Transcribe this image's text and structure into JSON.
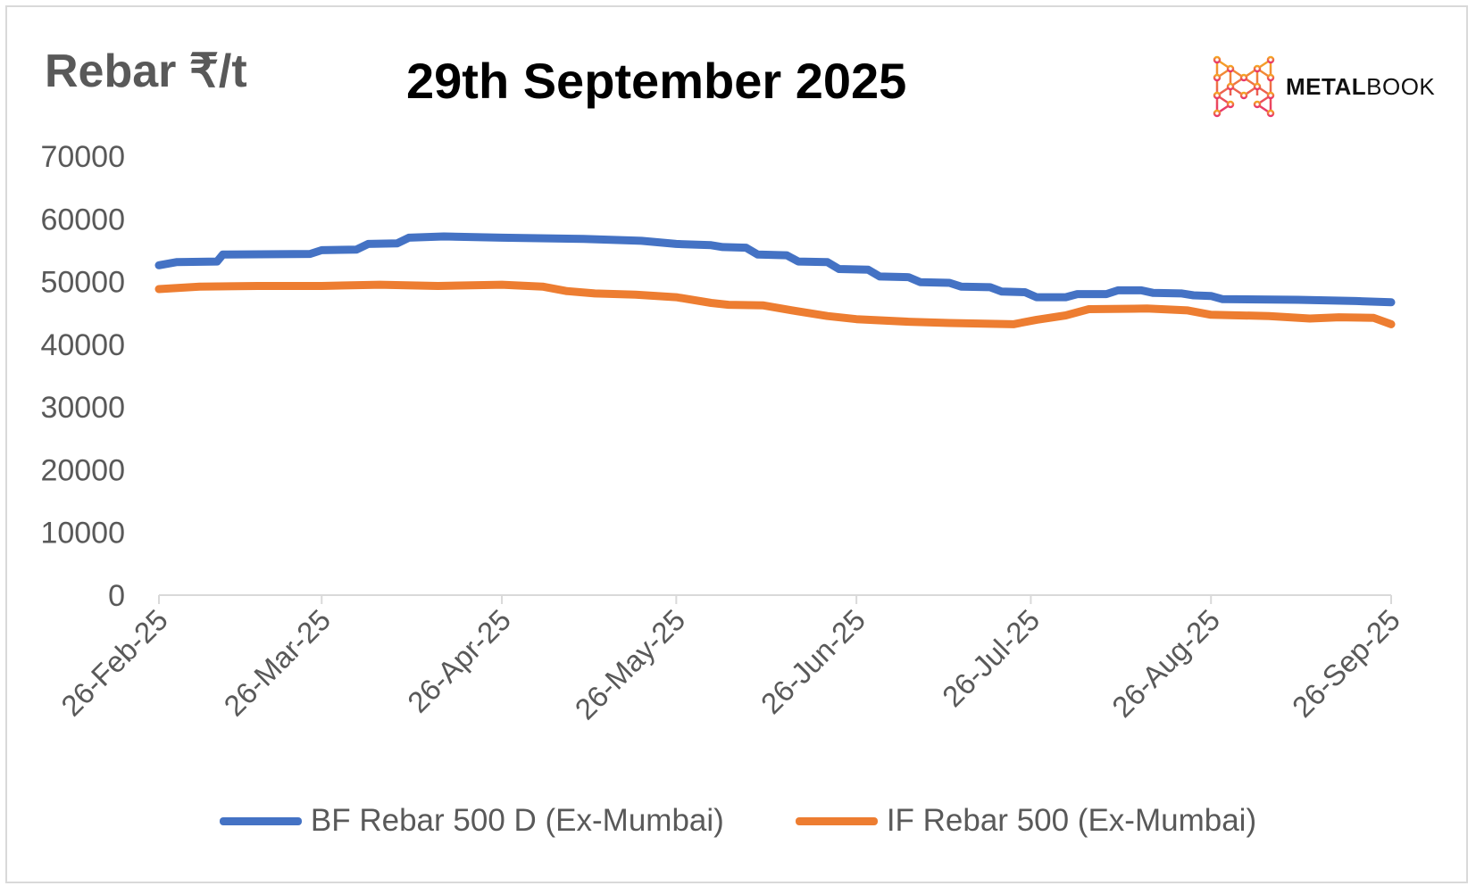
{
  "header": {
    "y_title": "Rebar ₹/t",
    "title": "29th September 2025",
    "logo_text_bold": "METAL",
    "logo_text_light": "BOOK"
  },
  "chart_data": {
    "type": "line",
    "title": "29th September 2025",
    "ylabel": "Rebar ₹/t",
    "xlabel": "",
    "ylim": [
      0,
      70000
    ],
    "yticks": [
      0,
      10000,
      20000,
      30000,
      40000,
      50000,
      60000,
      70000
    ],
    "xticks": [
      "2025-02-26",
      "2025-03-26",
      "2025-04-26",
      "2025-05-26",
      "2025-06-26",
      "2025-07-26",
      "2025-08-26",
      "2025-09-26"
    ],
    "xtick_labels": [
      "26-Feb-25",
      "26-Mar-25",
      "26-Apr-25",
      "26-May-25",
      "26-Jun-25",
      "26-Jul-25",
      "26-Aug-25",
      "26-Sep-25"
    ],
    "xlim": [
      "2025-02-26",
      "2025-09-26"
    ],
    "grid": false,
    "legend": "bottom",
    "series": [
      {
        "name": "BF Rebar 500 D (Ex-Mumbai)",
        "color": "#4472c4",
        "points": [
          [
            "2025-02-26",
            52600
          ],
          [
            "2025-03-01",
            53100
          ],
          [
            "2025-03-08",
            53200
          ],
          [
            "2025-03-09",
            54300
          ],
          [
            "2025-03-24",
            54400
          ],
          [
            "2025-03-26",
            55000
          ],
          [
            "2025-04-01",
            55100
          ],
          [
            "2025-04-03",
            56000
          ],
          [
            "2025-04-08",
            56100
          ],
          [
            "2025-04-10",
            57000
          ],
          [
            "2025-04-16",
            57200
          ],
          [
            "2025-04-26",
            57000
          ],
          [
            "2025-05-10",
            56800
          ],
          [
            "2025-05-20",
            56500
          ],
          [
            "2025-05-26",
            56000
          ],
          [
            "2025-06-01",
            55800
          ],
          [
            "2025-06-03",
            55500
          ],
          [
            "2025-06-07",
            55400
          ],
          [
            "2025-06-09",
            54300
          ],
          [
            "2025-06-14",
            54200
          ],
          [
            "2025-06-16",
            53200
          ],
          [
            "2025-06-21",
            53100
          ],
          [
            "2025-06-23",
            52000
          ],
          [
            "2025-06-28",
            51900
          ],
          [
            "2025-06-30",
            50800
          ],
          [
            "2025-07-05",
            50700
          ],
          [
            "2025-07-07",
            49900
          ],
          [
            "2025-07-12",
            49800
          ],
          [
            "2025-07-14",
            49200
          ],
          [
            "2025-07-19",
            49100
          ],
          [
            "2025-07-21",
            48400
          ],
          [
            "2025-07-25",
            48300
          ],
          [
            "2025-07-27",
            47500
          ],
          [
            "2025-08-01",
            47500
          ],
          [
            "2025-08-03",
            48000
          ],
          [
            "2025-08-08",
            48000
          ],
          [
            "2025-08-10",
            48600
          ],
          [
            "2025-08-14",
            48600
          ],
          [
            "2025-08-16",
            48200
          ],
          [
            "2025-08-21",
            48100
          ],
          [
            "2025-08-23",
            47800
          ],
          [
            "2025-08-26",
            47700
          ],
          [
            "2025-08-28",
            47200
          ],
          [
            "2025-09-10",
            47100
          ],
          [
            "2025-09-20",
            46900
          ],
          [
            "2025-09-26",
            46700
          ]
        ]
      },
      {
        "name": "IF Rebar 500 (Ex-Mumbai)",
        "color": "#ed7d31",
        "points": [
          [
            "2025-02-26",
            48800
          ],
          [
            "2025-03-05",
            49200
          ],
          [
            "2025-03-15",
            49300
          ],
          [
            "2025-03-26",
            49300
          ],
          [
            "2025-04-05",
            49500
          ],
          [
            "2025-04-15",
            49300
          ],
          [
            "2025-04-26",
            49500
          ],
          [
            "2025-05-03",
            49200
          ],
          [
            "2025-05-07",
            48500
          ],
          [
            "2025-05-12",
            48100
          ],
          [
            "2025-05-19",
            47900
          ],
          [
            "2025-05-26",
            47500
          ],
          [
            "2025-06-01",
            46600
          ],
          [
            "2025-06-04",
            46300
          ],
          [
            "2025-06-10",
            46200
          ],
          [
            "2025-06-15",
            45400
          ],
          [
            "2025-06-21",
            44500
          ],
          [
            "2025-06-26",
            44000
          ],
          [
            "2025-07-05",
            43600
          ],
          [
            "2025-07-12",
            43400
          ],
          [
            "2025-07-18",
            43300
          ],
          [
            "2025-07-23",
            43200
          ],
          [
            "2025-07-27",
            43900
          ],
          [
            "2025-08-01",
            44600
          ],
          [
            "2025-08-05",
            45600
          ],
          [
            "2025-08-15",
            45700
          ],
          [
            "2025-08-22",
            45400
          ],
          [
            "2025-08-26",
            44700
          ],
          [
            "2025-09-05",
            44500
          ],
          [
            "2025-09-12",
            44100
          ],
          [
            "2025-09-17",
            44300
          ],
          [
            "2025-09-23",
            44200
          ],
          [
            "2025-09-26",
            43200
          ]
        ]
      }
    ]
  }
}
